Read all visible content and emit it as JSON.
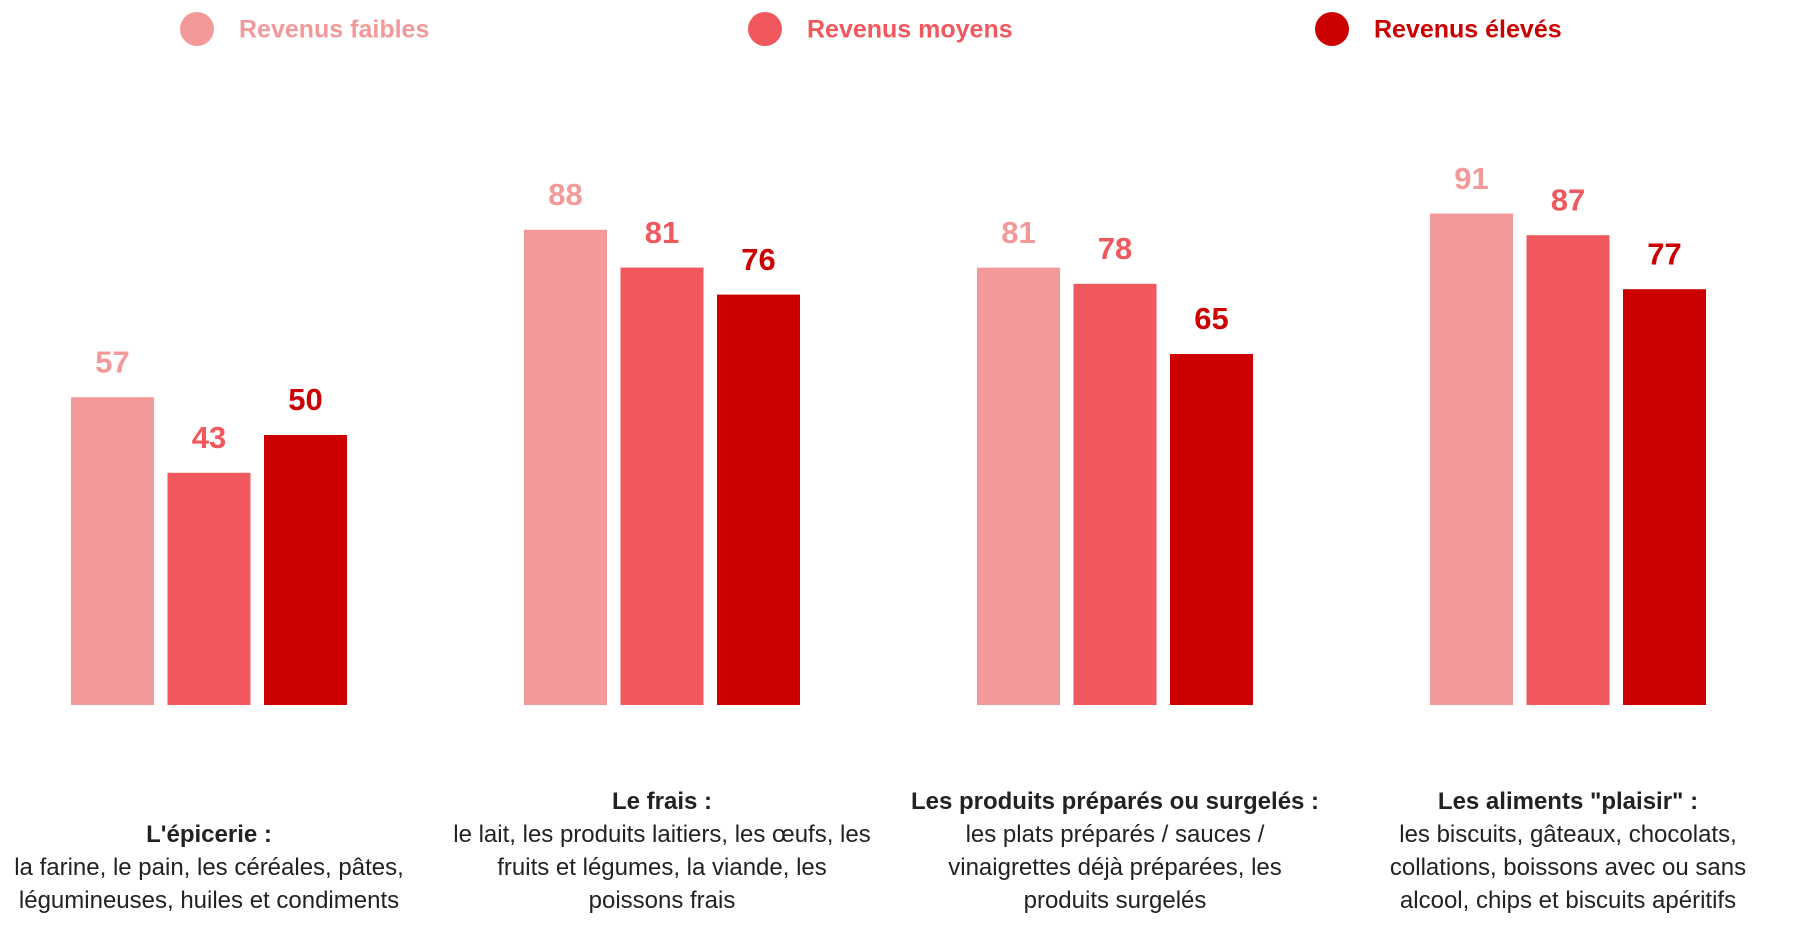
{
  "chart_data": {
    "type": "bar",
    "categories": [
      "L'épicerie :",
      "Le frais :",
      "Les produits préparés ou surgelés :",
      "Les aliments \"plaisir\" :"
    ],
    "descriptions": [
      "la farine, le pain, les céréales, pâtes, légumineuses, huiles et condiments",
      "le lait, les produits laitiers, les œufs, les fruits et légumes, la viande, les poissons frais",
      "les plats préparés / sauces / vinaigrettes déjà préparées, les produits surgelés",
      "les biscuits, gâteaux, chocolats, collations, boissons avec ou sans alcool, chips et biscuits apéritifs"
    ],
    "series": [
      {
        "name": "Revenus faibles",
        "color": "#f4999a",
        "values": [
          57,
          88,
          81,
          91
        ]
      },
      {
        "name": "Revenus moyens",
        "color": "#f0585e",
        "values": [
          43,
          81,
          78,
          87
        ]
      },
      {
        "name": "Revenus élevés",
        "color": "#cc0000",
        "values": [
          50,
          76,
          65,
          77
        ]
      }
    ],
    "legend": "top"
  }
}
